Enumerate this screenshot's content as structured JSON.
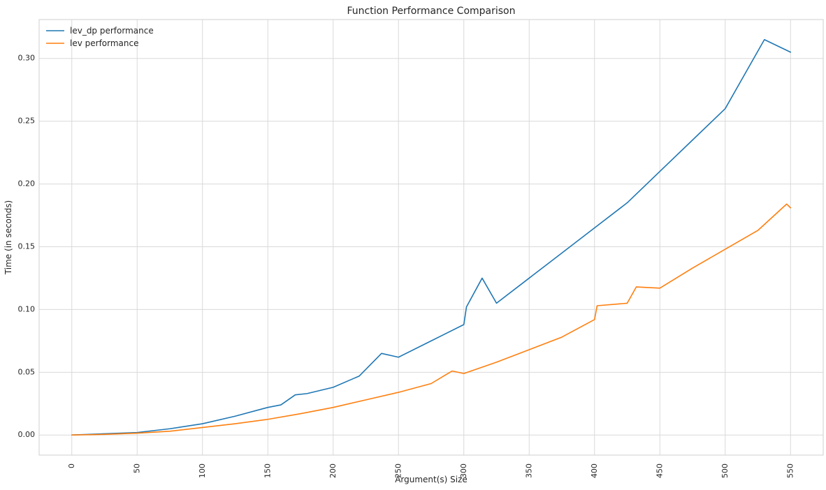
{
  "chart_data": {
    "type": "line",
    "title": "Function Performance Comparison",
    "xlabel": "Argument(s) Size",
    "ylabel": "Time (in seconds)",
    "xlim": [
      -25,
      575
    ],
    "ylim": [
      -0.016,
      0.331
    ],
    "x_ticks": [
      0,
      50,
      100,
      150,
      200,
      250,
      300,
      350,
      400,
      450,
      500,
      550
    ],
    "y_ticks": [
      0.0,
      0.05,
      0.1,
      0.15,
      0.2,
      0.25,
      0.3
    ],
    "y_tick_labels": [
      "0.00",
      "0.05",
      "0.10",
      "0.15",
      "0.20",
      "0.25",
      "0.30"
    ],
    "grid": true,
    "legend_position": "top-left",
    "series": [
      {
        "name": "lev_dp performance",
        "color": "#1f77b4",
        "x": [
          0,
          25,
          50,
          75,
          100,
          125,
          150,
          160,
          171,
          180,
          200,
          220,
          237,
          250,
          275,
          300,
          302,
          314,
          325,
          350,
          375,
          400,
          425,
          450,
          475,
          500,
          530,
          550
        ],
        "y": [
          0.0,
          0.001,
          0.002,
          0.005,
          0.009,
          0.015,
          0.022,
          0.024,
          0.032,
          0.033,
          0.038,
          0.047,
          0.065,
          0.062,
          0.075,
          0.088,
          0.102,
          0.125,
          0.105,
          0.125,
          0.145,
          0.165,
          0.185,
          0.21,
          0.235,
          0.26,
          0.315,
          0.305
        ]
      },
      {
        "name": "lev performance",
        "color": "#ff7f0e",
        "x": [
          0,
          25,
          50,
          75,
          100,
          125,
          150,
          175,
          200,
          225,
          250,
          275,
          291,
          300,
          325,
          350,
          375,
          400,
          402,
          425,
          432,
          450,
          475,
          500,
          525,
          547,
          550
        ],
        "y": [
          0.0,
          0.0005,
          0.0015,
          0.003,
          0.006,
          0.009,
          0.0125,
          0.017,
          0.022,
          0.028,
          0.034,
          0.041,
          0.051,
          0.049,
          0.058,
          0.068,
          0.078,
          0.092,
          0.103,
          0.105,
          0.118,
          0.117,
          0.133,
          0.148,
          0.163,
          0.184,
          0.181
        ]
      }
    ]
  }
}
